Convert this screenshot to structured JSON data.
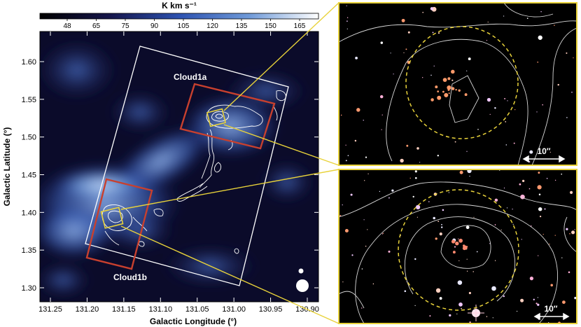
{
  "colorbar": {
    "unit_label": "K km s⁻¹",
    "ticks": [
      "48",
      "65",
      "75",
      "90",
      "105",
      "120",
      "135",
      "150",
      "165"
    ]
  },
  "map": {
    "xlabel": "Galactic Longitude (°)",
    "ylabel": "Galactic Latitude (°)",
    "xticks": [
      "131.25",
      "131.20",
      "131.15",
      "131.10",
      "131.05",
      "131.00",
      "130.95",
      "130.90"
    ],
    "yticks": [
      "1.60",
      "1.55",
      "1.50",
      "1.45",
      "1.40",
      "1.35",
      "1.30"
    ]
  },
  "annotations": {
    "cloud1a": "Cloud1a",
    "cloud1b": "Cloud1b"
  },
  "insets": {
    "top_scale": "10″",
    "bottom_scale": "10″"
  },
  "colors": {
    "frame_yellow": "#e8d23a",
    "box_red": "#c8402e",
    "contour": "#ffffff",
    "map_dark": "#0b0b2a",
    "map_bright": "#6f9ad8"
  }
}
